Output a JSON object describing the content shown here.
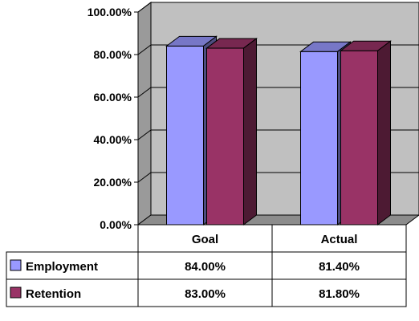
{
  "chart_data": {
    "type": "bar",
    "title": "",
    "xlabel": "",
    "ylabel": "",
    "categories": [
      "Goal",
      "Actual"
    ],
    "series": [
      {
        "name": "Employment",
        "values": [
          84.0,
          81.4
        ],
        "value_labels": [
          "84.00%",
          "81.40%"
        ],
        "color": "#9999FF"
      },
      {
        "name": "Retention",
        "values": [
          83.0,
          81.8
        ],
        "value_labels": [
          "83.00%",
          "81.80%"
        ],
        "color": "#993366"
      }
    ],
    "ylim": [
      0,
      100
    ],
    "y_ticks": [
      "0.00%",
      "20.00%",
      "40.00%",
      "60.00%",
      "80.00%",
      "100.00%"
    ],
    "grid": true,
    "three_d": true,
    "legend": "data-table",
    "plot_background": "#C0C0C0"
  }
}
